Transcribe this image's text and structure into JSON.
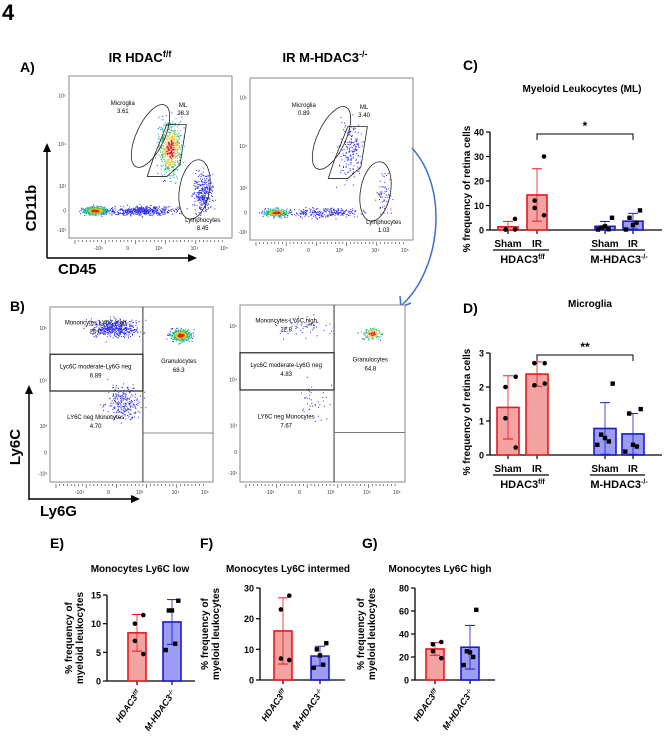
{
  "figure_number": "4",
  "panels": {
    "A": {
      "label": "A)",
      "titles": [
        {
          "main": "IR HDAC",
          "sup": "f/f"
        },
        {
          "main": "IR M-HDAC3",
          "sup": "-/-"
        }
      ],
      "y_axis": "CD11b",
      "x_axis": "CD45",
      "y_ticks": [
        "10⁵",
        "10⁴",
        "10³",
        "0",
        "-10³"
      ],
      "x_ticks": [
        "-10³",
        "0",
        "10³",
        "10⁴",
        "10⁵"
      ],
      "plots": [
        {
          "gates": [
            {
              "name": "Microglia",
              "value": "3.61"
            },
            {
              "name": "ML",
              "value": "28.3"
            },
            {
              "name": "Lymphocytes",
              "value": "8.45"
            }
          ]
        },
        {
          "gates": [
            {
              "name": "Microglia",
              "value": "0.89"
            },
            {
              "name": "ML",
              "value": "3.40"
            },
            {
              "name": "Lymphocytes",
              "value": "1.03"
            }
          ]
        }
      ]
    },
    "B": {
      "label": "B)",
      "y_axis": "Ly6C",
      "x_axis": "Ly6G",
      "y_ticks": [
        "10⁵",
        "10⁴",
        "10³",
        "0",
        "-10³"
      ],
      "x_ticks": [
        "-10³",
        "0",
        "10³",
        "10⁴",
        "10⁵"
      ],
      "plots": [
        {
          "gates": [
            {
              "name": "Mononcytes LY6C high",
              "value": "20.0"
            },
            {
              "name": "Lyc6C moderate-Ly6G neg",
              "value": "6.89"
            },
            {
              "name": "LY6C neg Monocytes",
              "value": "4.70"
            },
            {
              "name": "Granulocytes",
              "value": "68.3"
            }
          ]
        },
        {
          "gates": [
            {
              "name": "Mononcytes LY6C high",
              "value": "22.8"
            },
            {
              "name": "Lyc6C moderate-Ly6G neg",
              "value": "4.83"
            },
            {
              "name": "LY6C neg Monocytes",
              "value": "7.67"
            },
            {
              "name": "Granulocytes",
              "value": "64.8"
            }
          ]
        }
      ]
    }
  },
  "colors": {
    "hdac": "#f4a3a3",
    "hdac_edge": "#e8191e",
    "mhdac": "#9c9cf2",
    "mhdac_edge": "#1a1ac8",
    "flow_arrow": "#3b6fd1"
  },
  "chart_data": [
    {
      "id": "C",
      "panel_label": "C)",
      "type": "bar",
      "title": "Myeloid Leukocytes (ML)",
      "ylabel": "% frequency of retina cells",
      "ylim": [
        0,
        40
      ],
      "yticks": [
        "0",
        "10",
        "20",
        "30",
        "40"
      ],
      "categories": [
        "Sham",
        "IR",
        "Sham",
        "IR"
      ],
      "groups": [
        {
          "main": "HDAC3",
          "sup": "f/f"
        },
        {
          "main": "M-HDAC3",
          "sup": "-/-"
        }
      ],
      "significance": {
        "from": 1,
        "to": 3,
        "label": "*"
      },
      "series": [
        {
          "name": "HDAC3 f/f Sham",
          "mean": 1.3,
          "sd": 2.2,
          "points": [
            4.5,
            0.2,
            0.2,
            0.2
          ]
        },
        {
          "name": "HDAC3 f/f IR",
          "mean": 14.3,
          "sd": 10.7,
          "points": [
            30,
            12,
            9,
            6
          ]
        },
        {
          "name": "M-HDAC3 -/- Sham",
          "mean": 1.5,
          "sd": 2.0,
          "points": [
            5,
            1,
            1.5,
            0.3,
            0.2
          ]
        },
        {
          "name": "M-HDAC3 -/- IR",
          "mean": 3.6,
          "sd": 3.2,
          "points": [
            8,
            5,
            2,
            3,
            0.2
          ]
        }
      ]
    },
    {
      "id": "D",
      "panel_label": "D)",
      "type": "bar",
      "title": "Microglia",
      "ylabel": "% frequency of retina cells",
      "ylim": [
        0,
        3
      ],
      "yticks": [
        "0",
        "1",
        "2",
        "3"
      ],
      "categories": [
        "Sham",
        "IR",
        "Sham",
        "IR"
      ],
      "groups": [
        {
          "main": "HDAC3",
          "sup": "f/f"
        },
        {
          "main": "M-HDAC3",
          "sup": "-/-"
        }
      ],
      "significance": {
        "from": 1,
        "to": 3,
        "label": "**"
      },
      "series": [
        {
          "name": "HDAC3 f/f Sham",
          "mean": 1.4,
          "sd": 0.93,
          "points": [
            2.3,
            2.0,
            1.08,
            0.22
          ]
        },
        {
          "name": "HDAC3 f/f IR",
          "mean": 2.38,
          "sd": 0.36,
          "points": [
            2.7,
            2.7,
            2.05,
            2.1
          ]
        },
        {
          "name": "M-HDAC3 -/- Sham",
          "mean": 0.78,
          "sd": 0.76,
          "points": [
            2.1,
            0.6,
            0.5,
            0.4,
            0.3
          ]
        },
        {
          "name": "M-HDAC3 -/- IR",
          "mean": 0.62,
          "sd": 0.6,
          "points": [
            1.35,
            1.22,
            0.3,
            0.25,
            0.1
          ]
        }
      ]
    },
    {
      "id": "E",
      "panel_label": "E)",
      "type": "bar",
      "title": "Monocytes Ly6C low",
      "ylabel": [
        "% frequency of",
        "myeloid leukocytes"
      ],
      "ylim": [
        0,
        15
      ],
      "yticks": [
        "0",
        "5",
        "10",
        "15"
      ],
      "categories": [
        {
          "main": "HDAC3",
          "sup": "f/f"
        },
        {
          "main": "M-HDAC3",
          "sup": "-/-"
        }
      ],
      "series": [
        {
          "name": "HDAC3 f/f",
          "mean": 8.4,
          "sd": 3.2,
          "points": [
            11.5,
            10,
            7,
            4.7
          ]
        },
        {
          "name": "M-HDAC3 -/-",
          "mean": 10.3,
          "sd": 3.9,
          "points": [
            14,
            12.3,
            12.3,
            6.5,
            5.4
          ]
        }
      ]
    },
    {
      "id": "F",
      "panel_label": "F)",
      "type": "bar",
      "title": "Monocytes Ly6C intermed",
      "ylabel": [
        "% frequency of",
        "myeloid leukocytes"
      ],
      "ylim": [
        0,
        30
      ],
      "yticks": [
        "0",
        "10",
        "20",
        "30"
      ],
      "categories": [
        {
          "main": "HDAC3",
          "sup": "f/f"
        },
        {
          "main": "M-HDAC3",
          "sup": "-/-"
        }
      ],
      "series": [
        {
          "name": "HDAC3 f/f",
          "mean": 16,
          "sd": 10.8,
          "points": [
            27.5,
            23,
            7,
            6.5
          ]
        },
        {
          "name": "M-HDAC3 -/-",
          "mean": 7.8,
          "sd": 3.2,
          "points": [
            12,
            10,
            8,
            5,
            4
          ]
        }
      ]
    },
    {
      "id": "G",
      "panel_label": "G)",
      "type": "bar",
      "title": "Monocytes Ly6C high",
      "ylabel": [
        "% frequency of",
        "myeloid leukocytes"
      ],
      "ylim": [
        0,
        80
      ],
      "yticks": [
        "0",
        "20",
        "40",
        "60",
        "80"
      ],
      "categories": [
        {
          "main": "HDAC3",
          "sup": "f/f"
        },
        {
          "main": "M-HDAC3",
          "sup": "-/-"
        }
      ],
      "series": [
        {
          "name": "HDAC3 f/f",
          "mean": 27,
          "sd": 5.5,
          "points": [
            33,
            31,
            25,
            19
          ]
        },
        {
          "name": "M-HDAC3 -/-",
          "mean": 28.5,
          "sd": 19,
          "points": [
            61,
            25,
            24,
            20,
            13
          ]
        }
      ]
    }
  ]
}
